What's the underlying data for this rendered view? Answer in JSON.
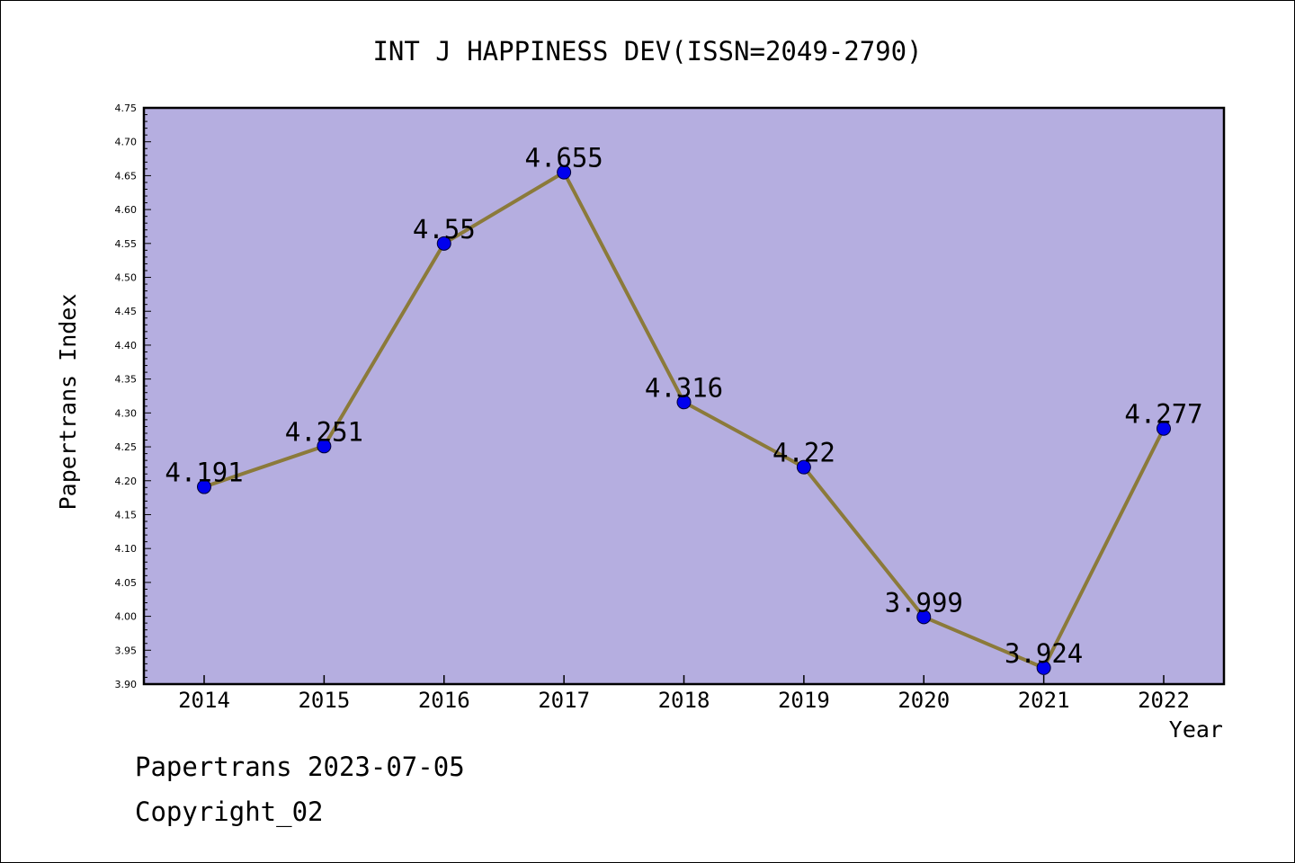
{
  "chart_data": {
    "type": "line",
    "title": "INT J HAPPINESS DEV(ISSN=2049-2790)",
    "xlabel": "Year",
    "ylabel": "Papertrans Index",
    "categories": [
      "2014",
      "2015",
      "2016",
      "2017",
      "2018",
      "2019",
      "2020",
      "2021",
      "2022"
    ],
    "values": [
      4.191,
      4.251,
      4.55,
      4.655,
      4.316,
      4.22,
      3.999,
      3.924,
      4.277
    ],
    "data_labels": [
      "4.191",
      "4.251",
      "4.55",
      "4.655",
      "4.316",
      "4.22",
      "3.999",
      "3.924",
      "4.277"
    ],
    "ylim": [
      3.9,
      4.75
    ],
    "yticks": [
      "3.90",
      "3.95",
      "4.00",
      "4.05",
      "4.10",
      "4.15",
      "4.20",
      "4.25",
      "4.30",
      "4.35",
      "4.40",
      "4.45",
      "4.50",
      "4.55",
      "4.60",
      "4.65",
      "4.70",
      "4.75"
    ],
    "grid": false,
    "colors": {
      "plot_background": "#b5aee0",
      "line": "#8b7a3a",
      "marker": "#0000ee"
    }
  },
  "footer": {
    "line1": "Papertrans 2023-07-05",
    "line2": "Copyright_02"
  }
}
